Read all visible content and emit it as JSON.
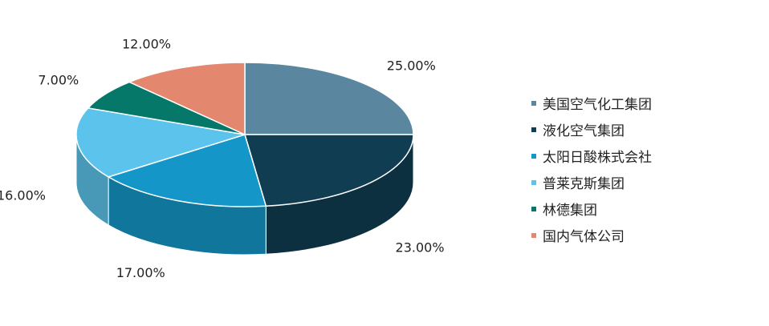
{
  "chart_data": {
    "type": "pie",
    "categories": [
      "美国空气化工集团",
      "液化空气集团",
      "太阳日酸株式会社",
      "普莱克斯集团",
      "林德集团",
      "国内气体公司"
    ],
    "values": [
      25,
      23,
      17,
      16,
      7,
      12
    ],
    "labels": [
      "25.00%",
      "23.00%",
      "17.00%",
      "16.00%",
      "7.00%",
      "12.00%"
    ],
    "colors": [
      "#5a879f",
      "#103d52",
      "#1497c8",
      "#5cc3ec",
      "#06786a",
      "#e4876f"
    ],
    "style": "3d",
    "legend": "right"
  }
}
